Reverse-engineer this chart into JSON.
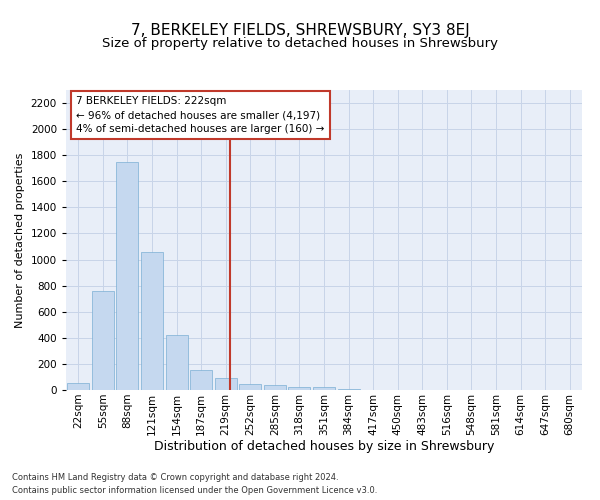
{
  "title": "7, BERKELEY FIELDS, SHREWSBURY, SY3 8EJ",
  "subtitle": "Size of property relative to detached houses in Shrewsbury",
  "xlabel": "Distribution of detached houses by size in Shrewsbury",
  "ylabel": "Number of detached properties",
  "footnote1": "Contains HM Land Registry data © Crown copyright and database right 2024.",
  "footnote2": "Contains public sector information licensed under the Open Government Licence v3.0.",
  "bin_labels": [
    "22sqm",
    "55sqm",
    "88sqm",
    "121sqm",
    "154sqm",
    "187sqm",
    "219sqm",
    "252sqm",
    "285sqm",
    "318sqm",
    "351sqm",
    "384sqm",
    "417sqm",
    "450sqm",
    "483sqm",
    "516sqm",
    "548sqm",
    "581sqm",
    "614sqm",
    "647sqm",
    "680sqm"
  ],
  "bar_values": [
    50,
    760,
    1750,
    1060,
    420,
    155,
    95,
    45,
    35,
    25,
    20,
    5,
    0,
    0,
    0,
    0,
    0,
    0,
    0,
    0,
    0
  ],
  "bar_color": "#c5d8ef",
  "bar_edge_color": "#7bafd4",
  "vline_x": 6.18,
  "vline_color": "#c0392b",
  "annotation_text": "7 BERKELEY FIELDS: 222sqm\n← 96% of detached houses are smaller (4,197)\n4% of semi-detached houses are larger (160) →",
  "annotation_box_color": "#c0392b",
  "ylim": [
    0,
    2300
  ],
  "yticks": [
    0,
    200,
    400,
    600,
    800,
    1000,
    1200,
    1400,
    1600,
    1800,
    2000,
    2200
  ],
  "grid_color": "#c8d4e8",
  "bg_color": "#e8eef8",
  "title_fontsize": 11,
  "subtitle_fontsize": 9.5,
  "xlabel_fontsize": 9,
  "ylabel_fontsize": 8,
  "tick_fontsize": 7.5,
  "annotation_fontsize": 7.5,
  "footnote_fontsize": 6
}
